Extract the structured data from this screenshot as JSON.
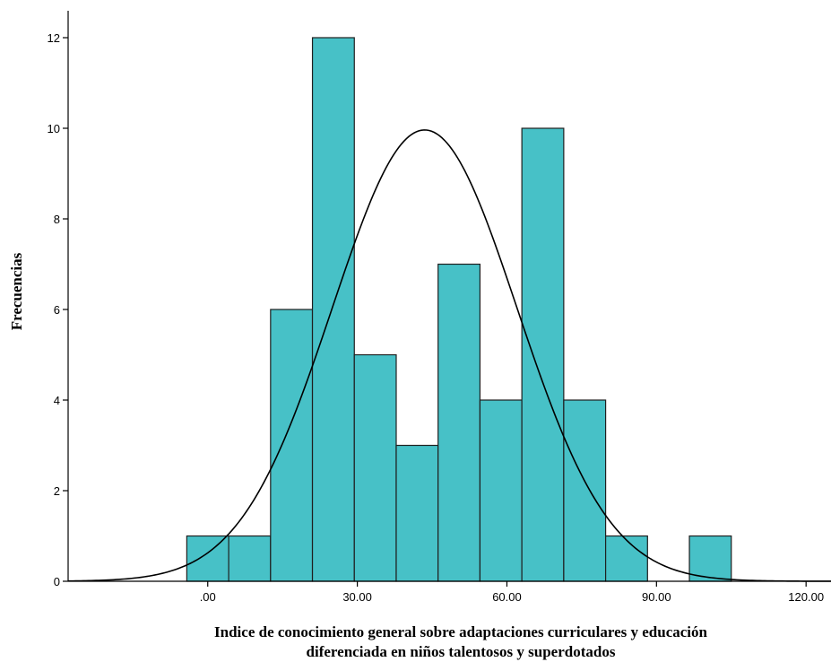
{
  "chart_data": {
    "type": "bar",
    "subtype": "histogram",
    "title": "",
    "xlabel": "Indice de conocimiento general sobre adaptaciones curriculares y educación diferenciada en niños talentosos y superdotados",
    "xlabel_lines": [
      "Indice de conocimiento general sobre adaptaciones curriculares y educación",
      "diferenciada en niños talentosos y superdotados"
    ],
    "ylabel": "Frecuencias",
    "bin_width": 8.4,
    "bins": [
      {
        "start": -4.2,
        "end": 4.2,
        "count": 1
      },
      {
        "start": 4.2,
        "end": 12.6,
        "count": 1
      },
      {
        "start": 12.6,
        "end": 21.0,
        "count": 6
      },
      {
        "start": 21.0,
        "end": 29.4,
        "count": 12
      },
      {
        "start": 29.4,
        "end": 37.8,
        "count": 5
      },
      {
        "start": 37.8,
        "end": 46.2,
        "count": 3
      },
      {
        "start": 46.2,
        "end": 54.6,
        "count": 7
      },
      {
        "start": 54.6,
        "end": 63.0,
        "count": 4
      },
      {
        "start": 63.0,
        "end": 71.4,
        "count": 10
      },
      {
        "start": 71.4,
        "end": 79.8,
        "count": 4
      },
      {
        "start": 79.8,
        "end": 88.2,
        "count": 1
      },
      {
        "start": 96.6,
        "end": 105.0,
        "count": 1
      }
    ],
    "normal_curve": {
      "mean": 43.5,
      "sd": 18.5
    },
    "xlim": [
      -28,
      125
    ],
    "ylim": [
      0,
      12.6
    ],
    "x_ticks": [
      {
        "value": 0,
        "label": ".00"
      },
      {
        "value": 30,
        "label": "30.00"
      },
      {
        "value": 60,
        "label": "60.00"
      },
      {
        "value": 90,
        "label": "90.00"
      },
      {
        "value": 120,
        "label": "120.00"
      }
    ],
    "y_ticks": [
      {
        "value": 0,
        "label": "0"
      },
      {
        "value": 2,
        "label": "2"
      },
      {
        "value": 4,
        "label": "4"
      },
      {
        "value": 6,
        "label": "6"
      },
      {
        "value": 8,
        "label": "8"
      },
      {
        "value": 10,
        "label": "10"
      },
      {
        "value": 12,
        "label": "12"
      }
    ],
    "grid": false,
    "legend": "none",
    "colors": {
      "bar_fill": "#47C1C7",
      "bar_stroke": "#1f1f1f",
      "curve": "#000000",
      "axis": "#000000"
    }
  }
}
